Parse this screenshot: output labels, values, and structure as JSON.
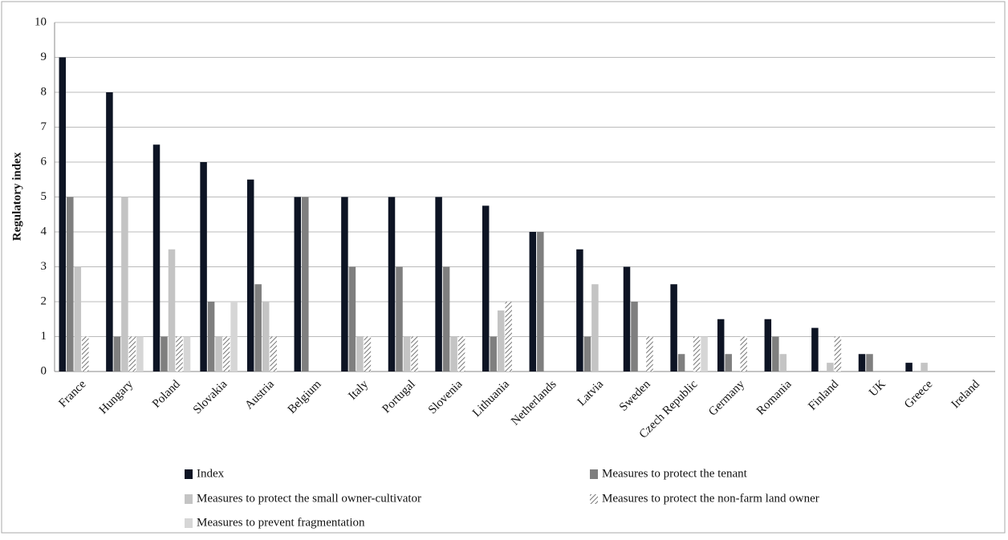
{
  "chart_data": {
    "type": "bar",
    "y_label": "Regulatory index",
    "categories": [
      "France",
      "Hungary",
      "Poland",
      "Slovakia",
      "Austria",
      "Belgium",
      "Italy",
      "Portugal",
      "Slovenia",
      "Lithuania",
      "Netherlands",
      "Latvia",
      "Sweden",
      "Czech Republic",
      "Germany",
      "Romania",
      "Finland",
      "UK",
      "Greece",
      "Ireland"
    ],
    "series": [
      {
        "name": "Index",
        "color": "#0d1424",
        "values": [
          9,
          8,
          6.5,
          6,
          5.5,
          5,
          5,
          5,
          5,
          4.75,
          4,
          3.5,
          3,
          2.5,
          1.5,
          1.5,
          1.25,
          0.5,
          0.25,
          0
        ]
      },
      {
        "name": "Measures to protect the tenant",
        "color": "#7f7f7f",
        "values": [
          5,
          1,
          1,
          2,
          2.5,
          5,
          3,
          3,
          3,
          1,
          4,
          1,
          2,
          0.5,
          0.5,
          1,
          0,
          0.5,
          0,
          0
        ]
      },
      {
        "name": "Measures to protect the small owner-cultivator",
        "color": "#c4c4c4",
        "values": [
          3,
          5,
          3.5,
          1,
          2,
          0,
          1,
          1,
          1,
          1.75,
          0,
          2.5,
          0,
          0,
          0,
          0.5,
          0.25,
          0,
          0.25,
          0
        ]
      },
      {
        "name": "Measures to protect the non-farm land owner",
        "color": "#8a8a8a",
        "pattern": "hatch",
        "values": [
          1,
          1,
          1,
          1,
          1,
          0,
          1,
          1,
          1,
          2,
          0,
          0,
          1,
          1,
          1,
          0,
          1,
          0,
          0,
          0
        ]
      },
      {
        "name": "Measures to prevent fragmentation",
        "color": "#d6d6d6",
        "values": [
          0,
          1,
          1,
          2,
          0,
          0,
          0,
          0,
          0,
          0,
          0,
          0,
          0,
          1,
          0,
          0,
          0,
          0,
          0,
          0
        ]
      }
    ],
    "ylim": [
      0,
      10
    ],
    "yticks": [
      0,
      1,
      2,
      3,
      4,
      5,
      6,
      7,
      8,
      9,
      10
    ],
    "grid": true
  }
}
